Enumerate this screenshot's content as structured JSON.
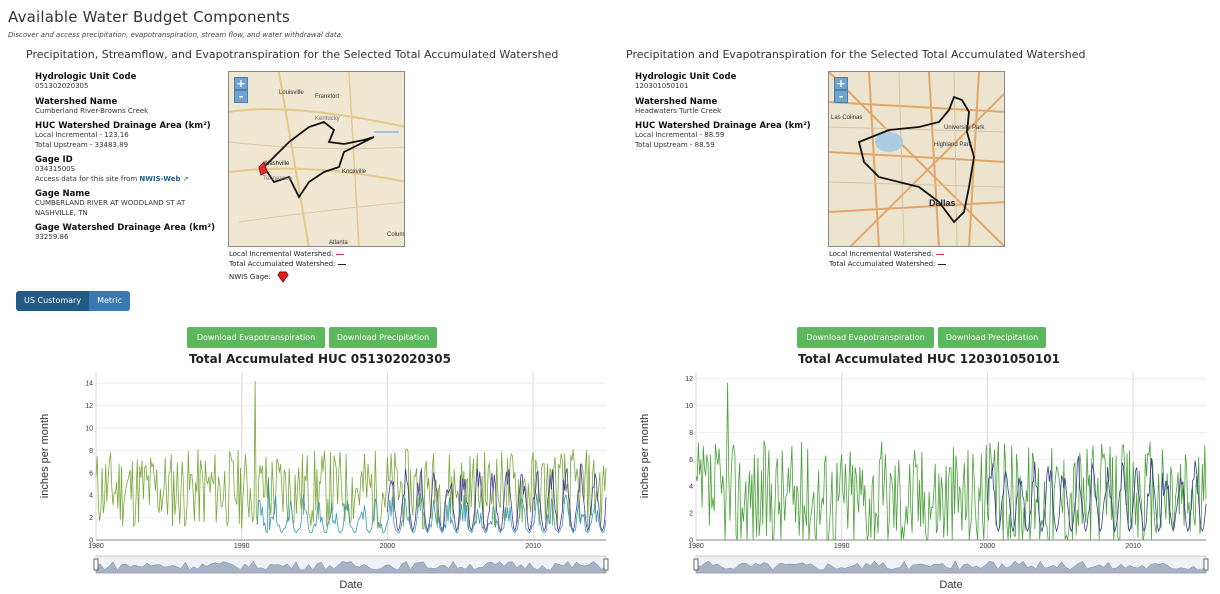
{
  "page": {
    "title": "Available Water Budget Components",
    "subtitle": "Discover and access precipitation, evapotranspiration, stream flow, and water withdrawal data."
  },
  "left_panel": {
    "heading": "Precipitation, Streamflow, and Evapotranspiration for the Selected Total Accumulated Watershed",
    "huc_label": "Hydrologic Unit Code",
    "huc_value": "051302020305",
    "watershed_label": "Watershed Name",
    "watershed_value": "Cumberland River-Browns Creek",
    "area_label": "HUC Watershed Drainage Area (km²)",
    "area_local": "Local Incremental - 123.16",
    "area_upstream": "Total Upstream - 33483.89",
    "gage_id_label": "Gage ID",
    "gage_id_value": "03431500S",
    "access_text": "Access data for this site from",
    "access_link": "NWIS-Web",
    "gage_name_label": "Gage Name",
    "gage_name_value": "CUMBERLAND RIVER AT WOODLAND ST AT NASHVILLE, TN",
    "gage_area_label": "Gage Watershed Drainage Area (km²)",
    "gage_area_value": "33259.86",
    "map_labels": [
      "Louisville",
      "Frankfort",
      "Kentucky",
      "Nashville",
      "Tennessee",
      "Knoxville",
      "Atlanta",
      "Colum"
    ],
    "legend_local": "Local Incremental Watershed:",
    "legend_total": "Total Accumulated Watershed:",
    "legend_gage": "NWIS Gage:"
  },
  "right_panel": {
    "heading": "Precipitation and Evapotranspiration for the Selected Total Accumulated Watershed",
    "huc_label": "Hydrologic Unit Code",
    "huc_value": "120301050101",
    "watershed_label": "Watershed Name",
    "watershed_value": "Headwaters Turtle Creek",
    "area_label": "HUC Watershed Drainage Area (km²)",
    "area_local": "Local Incremental - 88.59",
    "area_upstream": "Total Upstream - 88.59",
    "map_labels": [
      "University Park",
      "Highland Park",
      "Dallas",
      "Las Colinas"
    ],
    "legend_local": "Local Incremental Watershed:",
    "legend_total": "Total Accumulated Watershed:"
  },
  "units": {
    "us_label": "US Customary",
    "metric_label": "Metric"
  },
  "zoom": {
    "plus": "+",
    "minus": "-"
  },
  "buttons": {
    "left_et": "Download Evapotranspiration",
    "left_precip": "Download Precipitation",
    "right_et": "Download Evapotranspiration",
    "right_precip": "Download Precipitation"
  },
  "chart_data": [
    {
      "type": "line",
      "title": "Total Accumulated HUC 051302020305",
      "xlabel": "Date",
      "ylabel": "inches per month",
      "xlim": [
        1980,
        2015
      ],
      "ylim": [
        0,
        15
      ],
      "x_ticks": [
        1980,
        1990,
        2000,
        2010
      ],
      "y_ticks": [
        0,
        2,
        4,
        6,
        8,
        10,
        12,
        14
      ],
      "grid": true,
      "series": [
        {
          "key": "precip",
          "color": "#7aa83a",
          "start": 1980,
          "end": 2015,
          "base": 4.2,
          "amp": 3.6,
          "peak": 14.2,
          "peak_x": 1990.9
        },
        {
          "key": "streamflow",
          "color": "#3a9ab0",
          "start": 1991,
          "end": 2015,
          "base": 1.6,
          "amp": 2.4,
          "peak": 5.5,
          "peak_x": 1991.8
        },
        {
          "key": "et",
          "color": "#4a3a9a",
          "start": 2000,
          "end": 2015,
          "base": 2.8,
          "amp": 2.6,
          "peak": 5.8,
          "peak_x": 2005
        }
      ]
    },
    {
      "type": "line",
      "title": "Total Accumulated HUC 120301050101",
      "xlabel": "Date",
      "ylabel": "inches per month",
      "xlim": [
        1980,
        2015
      ],
      "ylim": [
        0,
        12.5
      ],
      "x_ticks": [
        1980,
        1990,
        2000,
        2010
      ],
      "y_ticks": [
        0,
        2,
        4,
        6,
        8,
        10,
        12
      ],
      "grid": true,
      "series": [
        {
          "key": "precip",
          "color": "#4aa03a",
          "start": 1980,
          "end": 2015,
          "base": 2.8,
          "amp": 4.2,
          "peak": 11.7,
          "peak_x": 1982.2
        },
        {
          "key": "et",
          "color": "#3a3a9a",
          "start": 2000,
          "end": 2015,
          "base": 2.2,
          "amp": 2.4,
          "peak": 5.0,
          "peak_x": 2012
        }
      ]
    }
  ]
}
